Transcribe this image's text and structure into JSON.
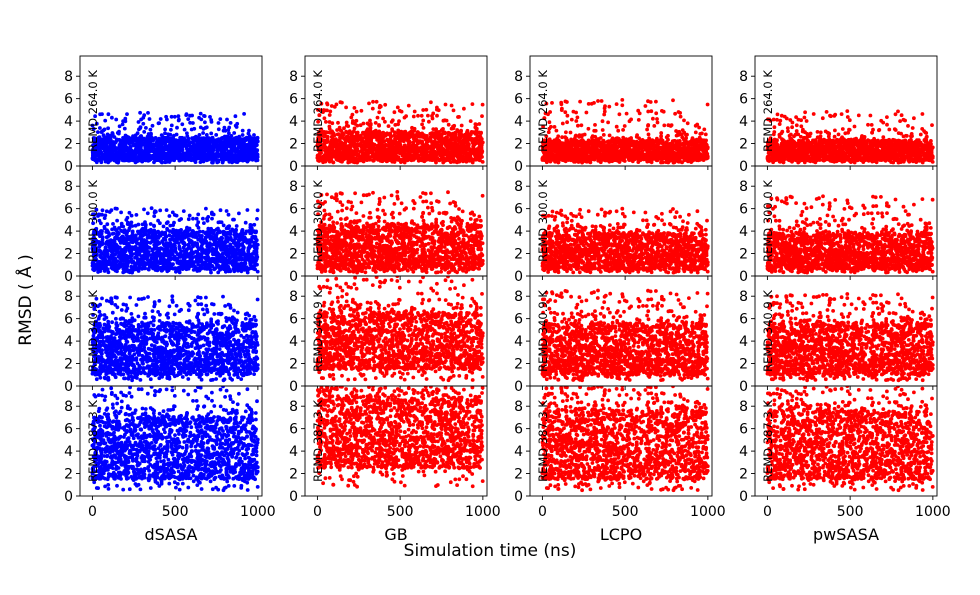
{
  "chart_data": {
    "type": "scatter",
    "xlabel": "Simulation time (ns)",
    "ylabel": "RMSD ( Å )",
    "xlim": [
      -75,
      1025
    ],
    "ylim": [
      0,
      9.8
    ],
    "x_ticks": [
      0,
      500,
      1000
    ],
    "x_tick_labels": [
      "0",
      "500",
      "1000"
    ],
    "y_ticks": [
      0,
      2,
      4,
      6,
      8
    ],
    "y_tick_labels": [
      "0",
      "2",
      "4",
      "6",
      "8"
    ],
    "columns": [
      {
        "name": "dSASA",
        "color": "#0000ff"
      },
      {
        "name": "GB",
        "color": "#ff0000"
      },
      {
        "name": "LCPO",
        "color": "#ff0000"
      },
      {
        "name": "pwSASA",
        "color": "#ff0000"
      }
    ],
    "rows": [
      {
        "label": "REMD 264.0 K"
      },
      {
        "label": "REMD 300.0 K"
      },
      {
        "label": "REMD 340.9 K"
      },
      {
        "label": "REMD 387.3 K"
      }
    ],
    "series_summary": [
      [
        {
          "column": "dSASA",
          "row": "REMD 264.0 K",
          "min": 0.3,
          "max": 4.8,
          "typical_low": 0.5,
          "typical_high": 2.5
        },
        {
          "column": "GB",
          "row": "REMD 264.0 K",
          "min": 0.3,
          "max": 5.8,
          "typical_low": 0.5,
          "typical_high": 3.0
        },
        {
          "column": "LCPO",
          "row": "REMD 264.0 K",
          "min": 0.3,
          "max": 5.9,
          "typical_low": 0.5,
          "typical_high": 2.3
        },
        {
          "column": "pwSASA",
          "row": "REMD 264.0 K",
          "min": 0.3,
          "max": 4.9,
          "typical_low": 0.5,
          "typical_high": 2.3
        }
      ],
      [
        {
          "column": "dSASA",
          "row": "REMD 300.0 K",
          "min": 0.3,
          "max": 6.1,
          "typical_low": 0.6,
          "typical_high": 4.0
        },
        {
          "column": "GB",
          "row": "REMD 300.0 K",
          "min": 0.3,
          "max": 7.5,
          "typical_low": 0.6,
          "typical_high": 4.5
        },
        {
          "column": "LCPO",
          "row": "REMD 300.0 K",
          "min": 0.3,
          "max": 6.0,
          "typical_low": 0.6,
          "typical_high": 3.8
        },
        {
          "column": "pwSASA",
          "row": "REMD 300.0 K",
          "min": 0.3,
          "max": 7.2,
          "typical_low": 0.6,
          "typical_high": 3.8
        }
      ],
      [
        {
          "column": "dSASA",
          "row": "REMD 340.9 K",
          "min": 0.5,
          "max": 8.0,
          "typical_low": 1.0,
          "typical_high": 5.5
        },
        {
          "column": "GB",
          "row": "REMD 340.9 K",
          "min": 0.5,
          "max": 9.8,
          "typical_low": 1.5,
          "typical_high": 6.5
        },
        {
          "column": "LCPO",
          "row": "REMD 340.9 K",
          "min": 0.5,
          "max": 8.6,
          "typical_low": 1.0,
          "typical_high": 5.5
        },
        {
          "column": "pwSASA",
          "row": "REMD 340.9 K",
          "min": 0.5,
          "max": 8.2,
          "typical_low": 1.0,
          "typical_high": 5.5
        }
      ],
      [
        {
          "column": "dSASA",
          "row": "REMD 387.3 K",
          "min": 0.5,
          "max": 9.8,
          "typical_low": 1.5,
          "typical_high": 7.0
        },
        {
          "column": "GB",
          "row": "REMD 387.3 K",
          "min": 0.8,
          "max": 9.8,
          "typical_low": 2.5,
          "typical_high": 8.5
        },
        {
          "column": "LCPO",
          "row": "REMD 387.3 K",
          "min": 0.5,
          "max": 9.8,
          "typical_low": 1.5,
          "typical_high": 7.5
        },
        {
          "column": "pwSASA",
          "row": "REMD 387.3 K",
          "min": 0.5,
          "max": 9.8,
          "typical_low": 1.5,
          "typical_high": 7.5
        }
      ]
    ]
  }
}
